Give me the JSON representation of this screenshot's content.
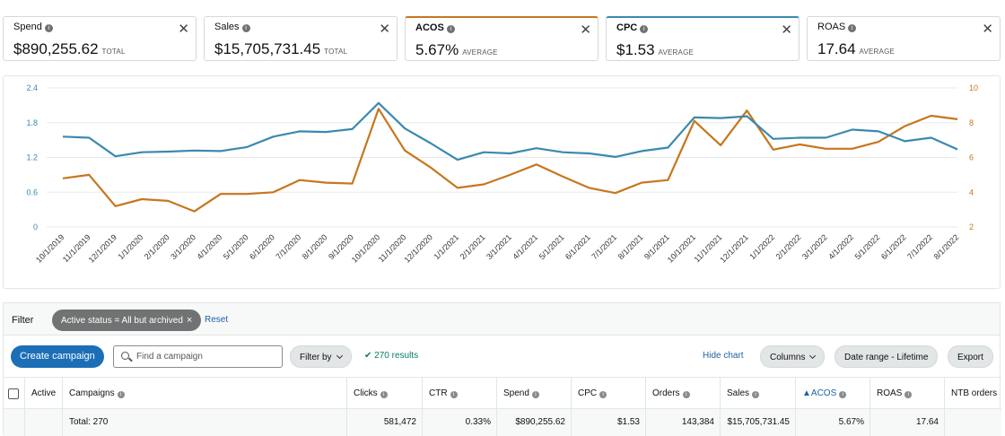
{
  "metrics": [
    {
      "name": "Spend",
      "value": "$890,255.62",
      "sub": "TOTAL"
    },
    {
      "name": "Sales",
      "value": "$15,705,731.45",
      "sub": "TOTAL"
    },
    {
      "name": "ACOS",
      "value": "5.67%",
      "sub": "AVERAGE"
    },
    {
      "name": "CPC",
      "value": "$1.53",
      "sub": "AVERAGE"
    },
    {
      "name": "ROAS",
      "value": "17.64",
      "sub": "AVERAGE"
    }
  ],
  "colors": {
    "cpc": "#3a89b0",
    "acos": "#c7761d",
    "link": "#2162a1",
    "primary": "#1c6fb7"
  },
  "chart_data": {
    "type": "line",
    "x": [
      "10/1/2019",
      "11/1/2019",
      "12/1/2019",
      "1/1/2020",
      "2/1/2020",
      "3/1/2020",
      "4/1/2020",
      "5/1/2020",
      "6/1/2020",
      "7/1/2020",
      "8/1/2020",
      "9/1/2020",
      "10/1/2020",
      "11/1/2020",
      "12/1/2020",
      "1/1/2021",
      "2/1/2021",
      "3/1/2021",
      "4/1/2021",
      "5/1/2021",
      "6/1/2021",
      "7/1/2021",
      "8/1/2021",
      "9/1/2021",
      "10/1/2021",
      "11/1/2021",
      "12/1/2021",
      "1/1/2022",
      "2/1/2022",
      "3/1/2022",
      "4/1/2022",
      "5/1/2022",
      "6/1/2022",
      "7/1/2022",
      "8/1/2022"
    ],
    "series": [
      {
        "name": "CPC",
        "axis": "left",
        "color": "#3a89b0",
        "values": [
          1.56,
          1.54,
          1.22,
          1.29,
          1.3,
          1.32,
          1.31,
          1.38,
          1.56,
          1.65,
          1.64,
          1.69,
          2.14,
          1.7,
          1.44,
          1.16,
          1.29,
          1.27,
          1.36,
          1.29,
          1.27,
          1.21,
          1.31,
          1.37,
          1.89,
          1.88,
          1.91,
          1.52,
          1.54,
          1.54,
          1.68,
          1.65,
          1.48,
          1.54,
          1.34
        ]
      },
      {
        "name": "ACOS",
        "axis": "right",
        "color": "#c7761d",
        "values": [
          4.8,
          5.0,
          3.2,
          3.6,
          3.5,
          2.9,
          3.9,
          3.9,
          4.0,
          4.7,
          4.55,
          4.5,
          8.8,
          6.4,
          5.4,
          4.25,
          4.45,
          5.0,
          5.6,
          4.9,
          4.25,
          3.95,
          4.55,
          4.7,
          8.1,
          6.7,
          8.7,
          6.45,
          6.75,
          6.5,
          6.5,
          6.9,
          7.8,
          8.4,
          8.2
        ]
      }
    ],
    "yleft": {
      "ticks": [
        "0",
        "0.6",
        "1.2",
        "1.8",
        "2.4"
      ],
      "range": [
        0,
        2.4
      ]
    },
    "yright": {
      "ticks": [
        "2",
        "4",
        "6",
        "8",
        "10"
      ],
      "range": [
        2,
        10
      ]
    }
  },
  "filter": {
    "label": "Filter",
    "chip": "Active status = All but archived",
    "chip_x": "×",
    "reset": "Reset"
  },
  "toolbar": {
    "create": "Create campaign",
    "search_placeholder": "Find a campaign",
    "filter_by": "Filter by",
    "results_check": "✔",
    "results": "270 results",
    "hide_chart": "Hide chart",
    "columns": "Columns",
    "date_range": "Date range - Lifetime",
    "export": "Export"
  },
  "table": {
    "headers": {
      "active": "Active",
      "campaigns": "Campaigns",
      "clicks": "Clicks",
      "ctr": "CTR",
      "spend": "Spend",
      "cpc": "CPC",
      "orders": "Orders",
      "sales": "Sales",
      "acos": "ACOS",
      "roas": "ROAS",
      "ntb": "NTB orders"
    },
    "total": {
      "label": "Total: 270",
      "clicks": "581,472",
      "ctr": "0.33%",
      "spend": "$890,255.62",
      "cpc": "$1.53",
      "orders": "143,384",
      "sales": "$15,705,731.45",
      "acos": "5.67%",
      "roas": "17.64"
    }
  }
}
